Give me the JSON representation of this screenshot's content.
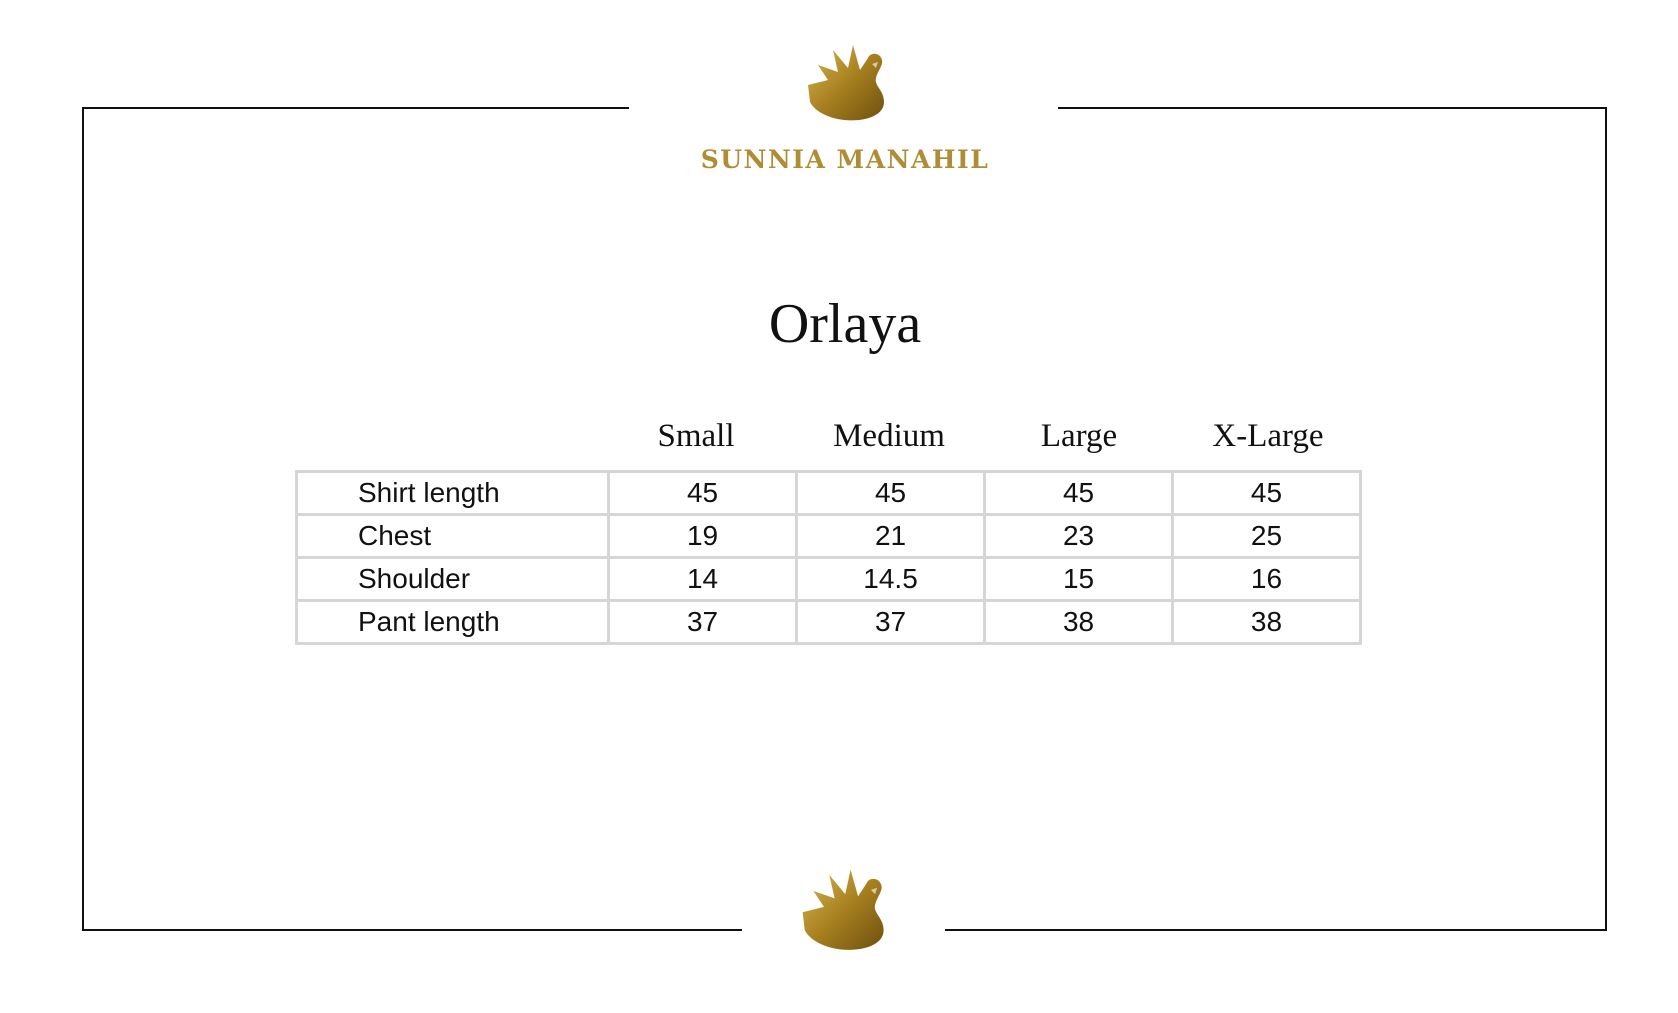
{
  "brand": {
    "name": "SUNNIA MANAHIL",
    "logo_icon": "gold-swan-icon",
    "color": "#b08d35"
  },
  "title": "Orlaya",
  "size_chart": {
    "columns": [
      "Small",
      "Medium",
      "Large",
      "X-Large"
    ],
    "rows": [
      {
        "label": "Shirt length",
        "values": [
          "45",
          "45",
          "45",
          "45"
        ]
      },
      {
        "label": "Chest",
        "values": [
          "19",
          "21",
          "23",
          "25"
        ]
      },
      {
        "label": "Shoulder",
        "values": [
          "14",
          "14.5",
          "15",
          "16"
        ]
      },
      {
        "label": "Pant length",
        "values": [
          "37",
          "37",
          "38",
          "38"
        ]
      }
    ]
  }
}
